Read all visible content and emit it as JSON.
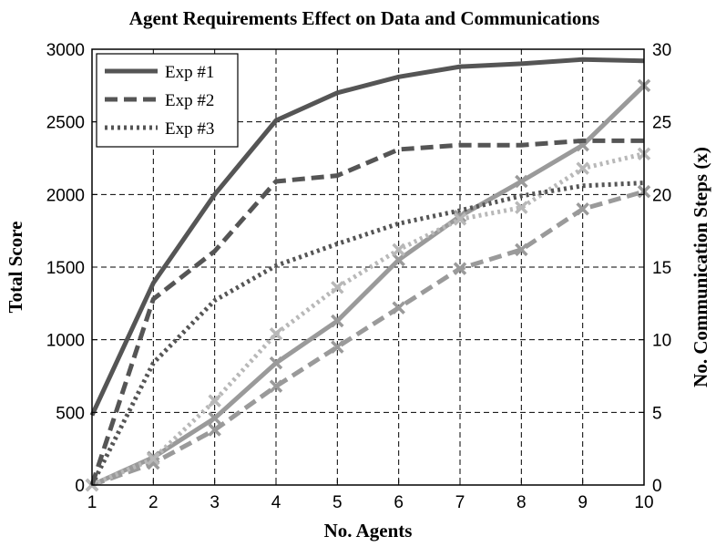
{
  "chart_data": {
    "type": "line",
    "title": "Agent Requirements Effect on Data and Communications",
    "xlabel": "No. Agents",
    "ylabel": "Total Score",
    "y2label": "No. Communication Steps (x)",
    "x": [
      1,
      2,
      3,
      4,
      5,
      6,
      7,
      8,
      9,
      10
    ],
    "xlim": [
      1,
      10
    ],
    "ylim": [
      0,
      3000
    ],
    "y2lim": [
      0,
      30
    ],
    "xticks": [
      "1",
      "2",
      "3",
      "4",
      "5",
      "6",
      "7",
      "8",
      "9",
      "10"
    ],
    "yticks": [
      "0",
      "500",
      "1000",
      "1500",
      "2000",
      "2500",
      "3000"
    ],
    "y2ticks": [
      "0",
      "5",
      "10",
      "15",
      "20",
      "25",
      "30"
    ],
    "grid": true,
    "legend_position": "top-left",
    "series": [
      {
        "name": "Exp #1",
        "axis": "left",
        "style": "solid",
        "color": "#555555",
        "values": [
          480,
          1390,
          2000,
          2510,
          2700,
          2810,
          2880,
          2900,
          2930,
          2920
        ]
      },
      {
        "name": "Exp #2",
        "axis": "left",
        "style": "dashed",
        "color": "#555555",
        "values": [
          0,
          1280,
          1610,
          2090,
          2130,
          2310,
          2340,
          2340,
          2370,
          2370
        ]
      },
      {
        "name": "Exp #3",
        "axis": "left",
        "style": "dotted",
        "color": "#555555",
        "values": [
          0,
          840,
          1270,
          1510,
          1660,
          1800,
          1890,
          1990,
          2060,
          2080
        ]
      },
      {
        "name": "",
        "axis": "right",
        "style": "solid",
        "color": "#9a9a9a",
        "marker": "x",
        "values": [
          0,
          1.9,
          4.6,
          8.4,
          11.3,
          15.5,
          18.5,
          20.9,
          23.4,
          27.5
        ]
      },
      {
        "name": "",
        "axis": "right",
        "style": "dashed",
        "color": "#9a9a9a",
        "marker": "x",
        "values": [
          0,
          1.5,
          3.8,
          6.8,
          9.5,
          12.2,
          14.9,
          16.2,
          19.0,
          20.2
        ]
      },
      {
        "name": "",
        "axis": "right",
        "style": "dotted",
        "color": "#b8b8b8",
        "marker": "x",
        "values": [
          0,
          1.8,
          5.8,
          10.4,
          13.6,
          16.2,
          18.3,
          19.1,
          21.8,
          22.8
        ]
      }
    ]
  }
}
